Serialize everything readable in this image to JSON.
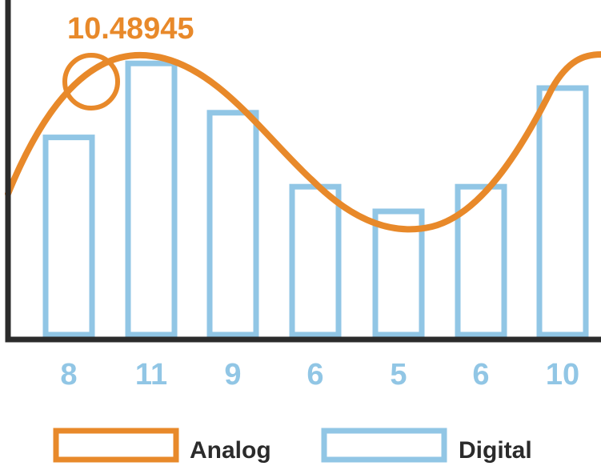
{
  "chart_data": {
    "type": "bar",
    "categories": [
      "8",
      "11",
      "9",
      "6",
      "5",
      "6",
      "10"
    ],
    "series": [
      {
        "name": "Digital",
        "values": [
          8,
          11,
          9,
          6,
          5,
          6,
          10
        ]
      }
    ],
    "analog_series": {
      "name": "Analog",
      "highlight_value": "10.48945"
    },
    "ylim": [
      0,
      12
    ],
    "grid": false,
    "legend_position": "bottom"
  },
  "colors": {
    "analog": "#e8892a",
    "digital": "#91c6e5",
    "axis": "#2b2b2b"
  },
  "legend": {
    "analog_label": "Analog",
    "digital_label": "Digital"
  }
}
